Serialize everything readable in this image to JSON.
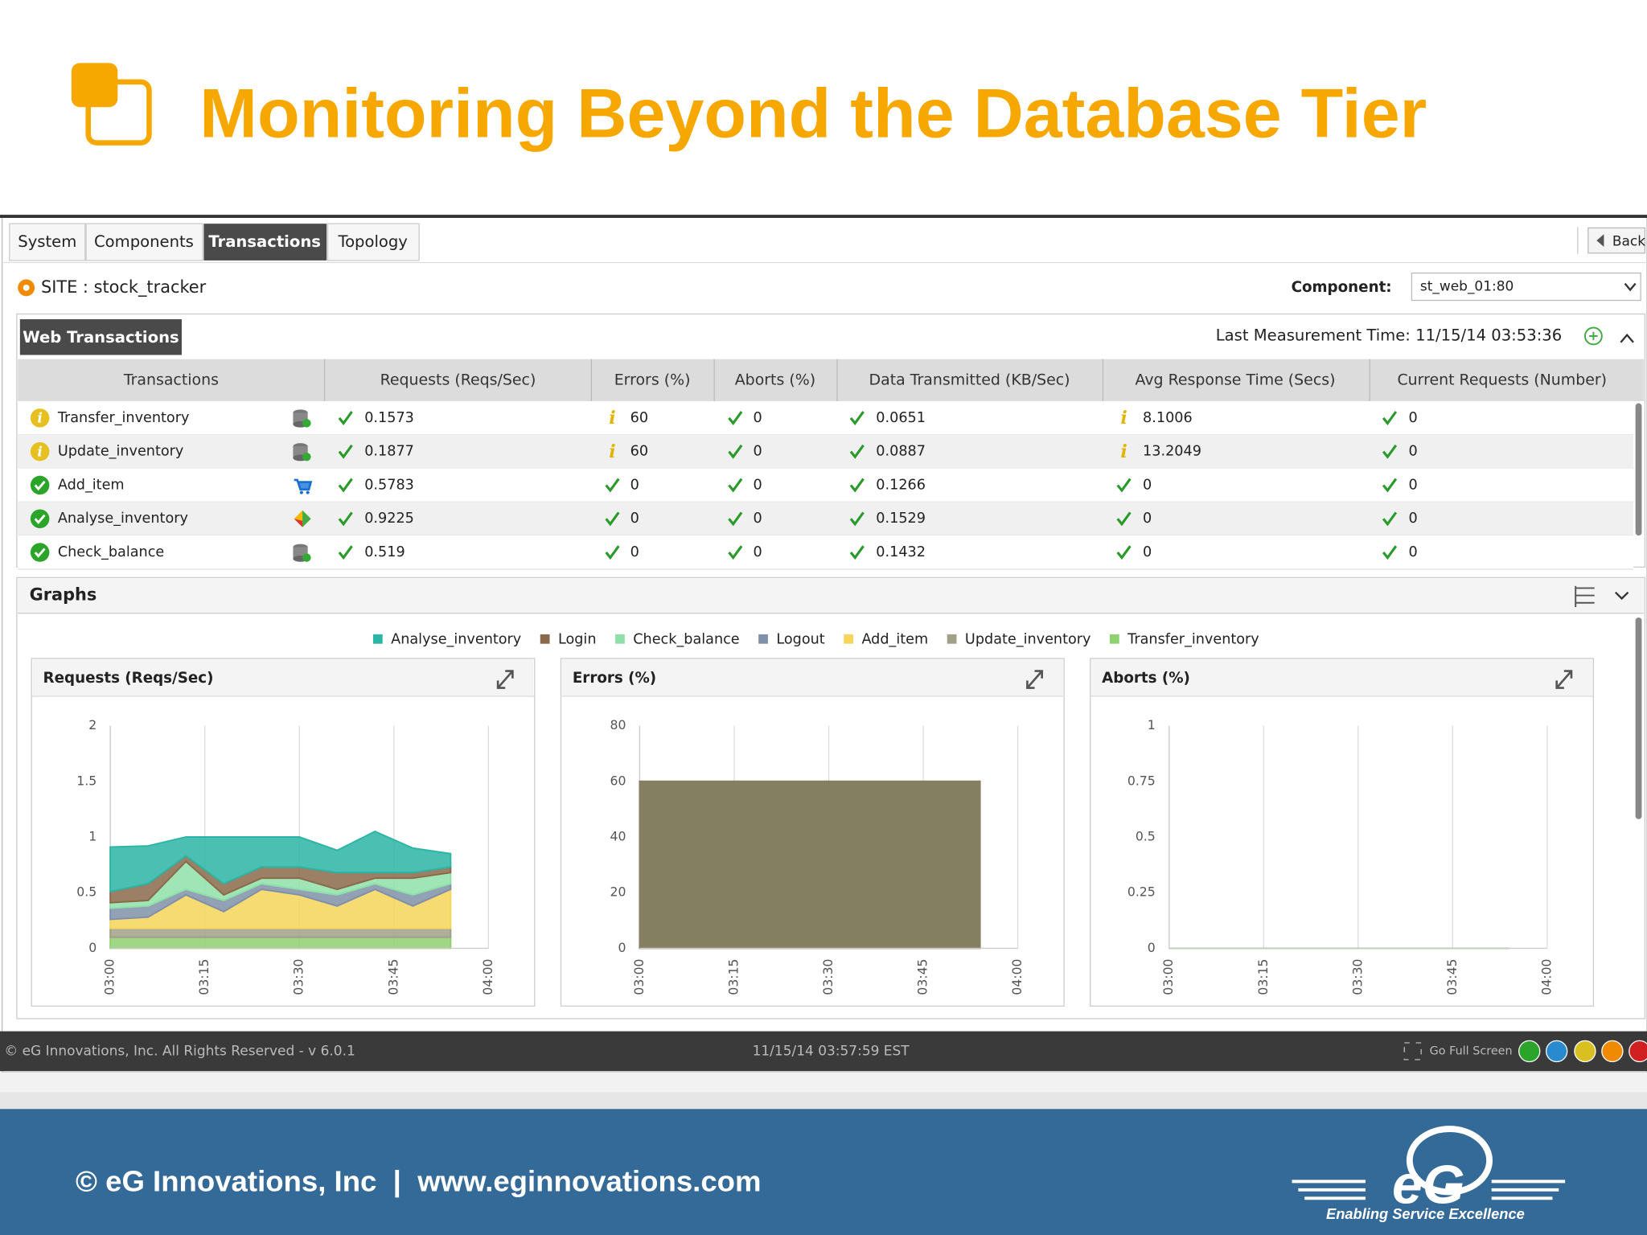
{
  "header": {
    "title": "Monitoring Beyond the Database Tier"
  },
  "tabs": [
    "System",
    "Components",
    "Transactions",
    "Topology"
  ],
  "back": "Back",
  "site": "SITE : stock_tracker",
  "component_label": "Component:",
  "component_value": "st_web_01:80",
  "panel": {
    "title": "Web Transactions",
    "last_measurement": "Last Measurement Time: 11/15/14 03:53:36"
  },
  "table": {
    "columns": [
      "Transactions",
      "Requests (Reqs/Sec)",
      "Errors (%)",
      "Aborts (%)",
      "Data Transmitted (KB/Sec)",
      "Avg Response Time (Secs)",
      "Current Requests (Number)"
    ],
    "rows": [
      [
        "Transfer_inventory",
        "0.1573",
        "60",
        "0",
        "0.0651",
        "8.1006",
        "0"
      ],
      [
        "Update_inventory",
        "0.1877",
        "60",
        "0",
        "0.0887",
        "13.2049",
        "0"
      ],
      [
        "Add_item",
        "0.5783",
        "0",
        "0",
        "0.1266",
        "0",
        "0"
      ],
      [
        "Analyse_inventory",
        "0.9225",
        "0",
        "0",
        "0.1529",
        "0",
        "0"
      ],
      [
        "Check_balance",
        "0.519",
        "0",
        "0",
        "0.1432",
        "0",
        "0"
      ]
    ]
  },
  "graphs": {
    "title": "Graphs",
    "charts": [
      {
        "type": "area",
        "title": "Requests (Reqs/Sec)",
        "stacked": true,
        "x": [
          "03:00",
          "03:06",
          "03:12",
          "03:18",
          "03:24",
          "03:30",
          "03:36",
          "03:42",
          "03:48",
          "03:54"
        ],
        "xlim": [
          "03:00",
          "04:00"
        ],
        "xticks": [
          "03:00",
          "03:15",
          "03:30",
          "03:45",
          "04:00"
        ],
        "ylim": [
          0,
          2
        ],
        "yticks": [
          0,
          0.5,
          1,
          1.5,
          2
        ],
        "grid": true,
        "series": [
          {
            "name": "Analyse_inventory",
            "color": "#2bb5a5",
            "values": [
              0.4,
              0.34,
              0.17,
              0.42,
              0.27,
              0.27,
              0.2,
              0.37,
              0.22,
              0.12
            ]
          },
          {
            "name": "Login",
            "color": "#8a6a4a",
            "values": [
              0.1,
              0.15,
              0.05,
              0.1,
              0.1,
              0.1,
              0.15,
              0.05,
              0.05,
              0.05
            ]
          },
          {
            "name": "Check_balance",
            "color": "#8fe0a8",
            "values": [
              0.05,
              0.05,
              0.25,
              0.05,
              0.05,
              0.1,
              0.05,
              0.05,
              0.15,
              0.1
            ]
          },
          {
            "name": "Logout",
            "color": "#8090a8",
            "values": [
              0.1,
              0.1,
              0.05,
              0.1,
              0.05,
              0.05,
              0.1,
              0.05,
              0.1,
              0.05
            ]
          },
          {
            "name": "Add_item",
            "color": "#f5d55a",
            "values": [
              0.08,
              0.1,
              0.3,
              0.15,
              0.35,
              0.3,
              0.2,
              0.35,
              0.2,
              0.35
            ]
          },
          {
            "name": "Update_inventory",
            "color": "#a0a088",
            "values": [
              0.08,
              0.08,
              0.08,
              0.08,
              0.08,
              0.08,
              0.08,
              0.08,
              0.08,
              0.08
            ]
          },
          {
            "name": "Transfer_inventory",
            "color": "#8fd070",
            "values": [
              0.1,
              0.1,
              0.1,
              0.1,
              0.1,
              0.1,
              0.1,
              0.1,
              0.1,
              0.1
            ]
          }
        ]
      },
      {
        "type": "area",
        "title": "Errors (%)",
        "stacked": false,
        "x": [
          "03:00",
          "03:06",
          "03:12",
          "03:18",
          "03:24",
          "03:30",
          "03:36",
          "03:42",
          "03:48",
          "03:54"
        ],
        "xlim": [
          "03:00",
          "04:00"
        ],
        "xticks": [
          "03:00",
          "03:15",
          "03:30",
          "03:45",
          "04:00"
        ],
        "ylim": [
          0,
          80
        ],
        "yticks": [
          0,
          20,
          40,
          60,
          80
        ],
        "grid": true,
        "series": [
          {
            "name": "Update_inventory",
            "color": "#857f62",
            "values": [
              60,
              60,
              60,
              60,
              60,
              60,
              60,
              60,
              60,
              60
            ]
          }
        ]
      },
      {
        "type": "area",
        "title": "Aborts (%)",
        "stacked": false,
        "x": [
          "03:00",
          "03:06",
          "03:12",
          "03:18",
          "03:24",
          "03:30",
          "03:36",
          "03:42",
          "03:48",
          "03:54"
        ],
        "xlim": [
          "03:00",
          "04:00"
        ],
        "xticks": [
          "03:00",
          "03:15",
          "03:30",
          "03:45",
          "04:00"
        ],
        "ylim": [
          0,
          1
        ],
        "yticks": [
          0,
          0.25,
          0.5,
          0.75,
          1
        ],
        "grid": true,
        "series": [
          {
            "name": "Transfer_inventory",
            "color": "#8fd070",
            "values": [
              0,
              0,
              0,
              0,
              0,
              0,
              0,
              0,
              0,
              0
            ]
          }
        ]
      }
    ]
  },
  "footer": {
    "copyright": "© eG Innovations, Inc. All Rights Reserved - v 6.0.1",
    "time": "11/15/14 03:57:59 EST",
    "fullscreen": "Go Full Screen"
  },
  "bottom": {
    "text": "© eG Innovations, Inc  |  www.eginnovations.com",
    "logo": "eG",
    "tagline": "Enabling Service Excellence"
  }
}
